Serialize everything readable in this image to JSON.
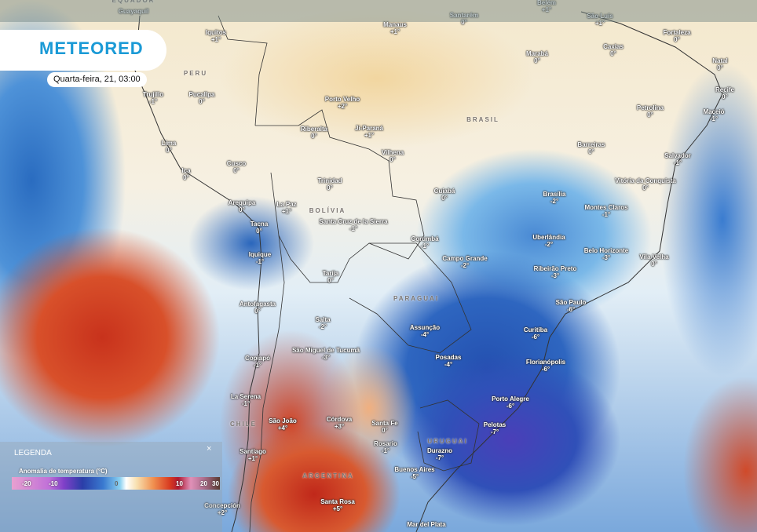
{
  "brand": {
    "logo": "METEORED",
    "accent": "#1a9ad6"
  },
  "timestamp": "Quarta-feira, 21, 03:00",
  "legend": {
    "title": "LEGENDA",
    "close": "×",
    "subtitle": "Anomalia de temperatura (°C)",
    "ticks": [
      "-20",
      "-10",
      "0",
      "10",
      "20",
      "30"
    ]
  },
  "countries": [
    "EQUADOR",
    "PERU",
    "BRASIL",
    "BOLÍVIA",
    "PARAGUAI",
    "CHILE",
    "URUGUAI",
    "ARGENTINA"
  ],
  "cities": [
    {
      "name": "Guayaquil",
      "value": ""
    },
    {
      "name": "Santarém",
      "value": "0°"
    },
    {
      "name": "Belém",
      "value": "+1°"
    },
    {
      "name": "São Luís",
      "value": "+1°"
    },
    {
      "name": "Manaus",
      "value": "+1°"
    },
    {
      "name": "Iquitos",
      "value": "+1°"
    },
    {
      "name": "Fortaleza",
      "value": "0°"
    },
    {
      "name": "Marabá",
      "value": "0°"
    },
    {
      "name": "Caxias",
      "value": "0°"
    },
    {
      "name": "Natal",
      "value": "0°"
    },
    {
      "name": "Recife",
      "value": "0°"
    },
    {
      "name": "Trujillo",
      "value": "-1°"
    },
    {
      "name": "Pucallpa",
      "value": "0°"
    },
    {
      "name": "Porto Velho",
      "value": "+2°"
    },
    {
      "name": "Petrolina",
      "value": "0°"
    },
    {
      "name": "Maceió",
      "value": "-1°"
    },
    {
      "name": "Riberalta",
      "value": "0°"
    },
    {
      "name": "Ji-Paraná",
      "value": "+1°"
    },
    {
      "name": "Lima",
      "value": "0°"
    },
    {
      "name": "Barreiras",
      "value": "0°"
    },
    {
      "name": "Vilhena",
      "value": "0°"
    },
    {
      "name": "Salvador",
      "value": "-1°"
    },
    {
      "name": "Cusco",
      "value": "0°"
    },
    {
      "name": "Ica",
      "value": "0°"
    },
    {
      "name": "Trinidad",
      "value": "0°"
    },
    {
      "name": "Vitória da Conquista",
      "value": "0°"
    },
    {
      "name": "Cuiabá",
      "value": "0°"
    },
    {
      "name": "Brasília",
      "value": "-2°"
    },
    {
      "name": "Arequipa",
      "value": "0°"
    },
    {
      "name": "La Paz",
      "value": "+1°"
    },
    {
      "name": "Montes Claros",
      "value": "-1°"
    },
    {
      "name": "Santa Cruz de la Sierra",
      "value": "-1°"
    },
    {
      "name": "Tacna",
      "value": "0°"
    },
    {
      "name": "Corumbá",
      "value": "-1°"
    },
    {
      "name": "Uberlândia",
      "value": "-2°"
    },
    {
      "name": "Belo Horizonte",
      "value": "-3°"
    },
    {
      "name": "Iquique",
      "value": "-1°"
    },
    {
      "name": "Campo Grande",
      "value": "-2°"
    },
    {
      "name": "Vila Velha",
      "value": "0°"
    },
    {
      "name": "Ribeirão Preto",
      "value": "-3°"
    },
    {
      "name": "Tarija",
      "value": "0°"
    },
    {
      "name": "São Paulo",
      "value": "-6°"
    },
    {
      "name": "Antofagasta",
      "value": "0°"
    },
    {
      "name": "Salta",
      "value": "-2°"
    },
    {
      "name": "Assunção",
      "value": "-4°"
    },
    {
      "name": "Curitiba",
      "value": "-6°"
    },
    {
      "name": "São Miguel de Tucumã",
      "value": "-3°"
    },
    {
      "name": "Posadas",
      "value": "-4°"
    },
    {
      "name": "Florianópolis",
      "value": "-6°"
    },
    {
      "name": "Copiapó",
      "value": "-1°"
    },
    {
      "name": "La Serena",
      "value": "-1°"
    },
    {
      "name": "Porto Alegre",
      "value": "-6°"
    },
    {
      "name": "Pelotas",
      "value": "-7°"
    },
    {
      "name": "São João",
      "value": "+4°"
    },
    {
      "name": "Córdova",
      "value": "+3°"
    },
    {
      "name": "Santa Fe",
      "value": "0°"
    },
    {
      "name": "Rosario",
      "value": "-1°"
    },
    {
      "name": "Durazno",
      "value": "-7°"
    },
    {
      "name": "Santiago",
      "value": "+1°"
    },
    {
      "name": "Buenos Aires",
      "value": "-5°"
    },
    {
      "name": "Santa Rosa",
      "value": "+5°"
    },
    {
      "name": "Concepción",
      "value": "+2°"
    },
    {
      "name": "Mar del Plata",
      "value": ""
    }
  ]
}
